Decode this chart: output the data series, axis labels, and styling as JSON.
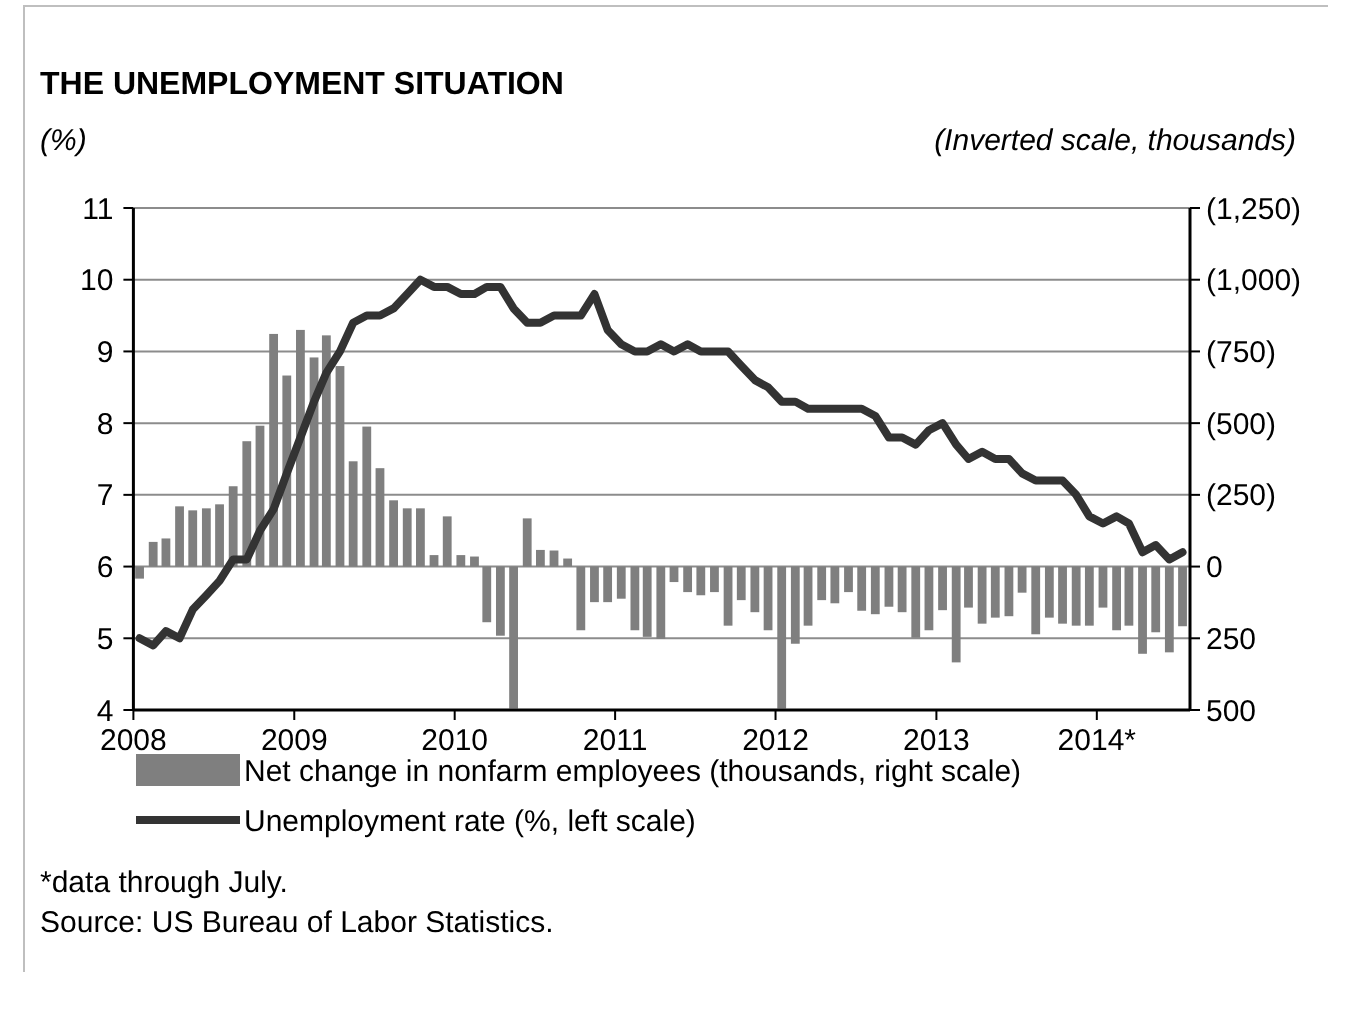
{
  "chart_data": {
    "type": "bar",
    "title": "THE UNEMPLOYMENT SITUATION",
    "ylabel": "(%)",
    "y2label": "(Inverted scale, thousands)",
    "x": [
      "2008-01-15",
      "2008-02-15",
      "2008-03-15",
      "2008-04-15",
      "2008-05-15",
      "2008-06-15",
      "2008-07-15",
      "2008-08-15",
      "2008-09-15",
      "2008-10-15",
      "2008-11-15",
      "2008-12-15",
      "2009-01-15",
      "2009-02-15",
      "2009-03-15",
      "2009-04-15",
      "2009-05-15",
      "2009-06-15",
      "2009-07-15",
      "2009-08-15",
      "2009-09-15",
      "2009-10-15",
      "2009-11-15",
      "2009-12-15",
      "2010-01-15",
      "2010-02-15",
      "2010-03-15",
      "2010-04-15",
      "2010-05-15",
      "2010-06-15",
      "2010-07-15",
      "2010-08-15",
      "2010-09-15",
      "2010-10-15",
      "2010-11-15",
      "2010-12-15",
      "2011-01-15",
      "2011-02-15",
      "2011-03-15",
      "2011-04-15",
      "2011-05-15",
      "2011-06-15",
      "2011-07-15",
      "2011-08-15",
      "2011-09-15",
      "2011-10-15",
      "2011-11-15",
      "2011-12-15",
      "2012-01-15",
      "2012-02-15",
      "2012-03-15",
      "2012-04-15",
      "2012-05-15",
      "2012-06-15",
      "2012-07-15",
      "2012-08-15",
      "2012-09-15",
      "2012-10-15",
      "2012-11-15",
      "2012-12-15",
      "2013-01-15",
      "2013-02-15",
      "2013-03-15",
      "2013-04-15",
      "2013-05-15",
      "2013-06-15",
      "2013-07-15",
      "2013-08-15",
      "2013-09-15",
      "2013-10-15",
      "2013-11-15",
      "2013-12-15",
      "2014-01-15",
      "2014-02-15",
      "2014-03-15",
      "2014-04-15",
      "2014-05-15",
      "2014-06-15",
      "2014-07-15"
    ],
    "series": [
      {
        "name": "Net change in nonfarm employees (thousands, right scale)",
        "axis": "y2",
        "color": "#7f7f7f",
        "values": [
          42,
          -86,
          -98,
          -210,
          -196,
          -203,
          -217,
          -280,
          -437,
          -491,
          -811,
          -666,
          -825,
          -729,
          -806,
          -699,
          -367,
          -488,
          -343,
          -231,
          -203,
          -203,
          -40,
          -175,
          -40,
          -35,
          194,
          241,
          495,
          -168,
          -58,
          -56,
          -28,
          222,
          124,
          124,
          112,
          222,
          245,
          252,
          54,
          89,
          100,
          89,
          206,
          117,
          159,
          222,
          495,
          269,
          206,
          117,
          128,
          89,
          154,
          166,
          140,
          159,
          248,
          222,
          152,
          334,
          143,
          199,
          178,
          173,
          91,
          236,
          178,
          199,
          206,
          206,
          143,
          222,
          206,
          304,
          229,
          299,
          208
        ]
      },
      {
        "name": "Unemployment rate (%, left scale)",
        "type": "line",
        "color": "#333333",
        "values": [
          5.0,
          4.9,
          5.1,
          5.0,
          5.4,
          5.6,
          5.8,
          6.1,
          6.1,
          6.5,
          6.8,
          7.3,
          7.8,
          8.3,
          8.7,
          9.0,
          9.4,
          9.5,
          9.5,
          9.6,
          9.8,
          10.0,
          9.9,
          9.9,
          9.8,
          9.8,
          9.9,
          9.9,
          9.6,
          9.4,
          9.4,
          9.5,
          9.5,
          9.5,
          9.8,
          9.3,
          9.1,
          9.0,
          9.0,
          9.1,
          9.0,
          9.1,
          9.0,
          9.0,
          9.0,
          8.8,
          8.6,
          8.5,
          8.3,
          8.3,
          8.2,
          8.2,
          8.2,
          8.2,
          8.2,
          8.1,
          7.8,
          7.8,
          7.7,
          7.9,
          8.0,
          7.7,
          7.5,
          7.6,
          7.5,
          7.5,
          7.3,
          7.2,
          7.2,
          7.2,
          7.0,
          6.7,
          6.6,
          6.7,
          6.6,
          6.2,
          6.3,
          6.1,
          6.2
        ]
      }
    ],
    "xlim": [
      "2008-01",
      "2014-08"
    ],
    "xticks": [
      {
        "value": "2008",
        "label": "2008"
      },
      {
        "value": "2009",
        "label": "2009"
      },
      {
        "value": "2010",
        "label": "2010"
      },
      {
        "value": "2011",
        "label": "2011"
      },
      {
        "value": "2012",
        "label": "2012"
      },
      {
        "value": "2013",
        "label": "2013"
      },
      {
        "value": "2014",
        "label": "2014*"
      }
    ],
    "ylim": [
      4,
      11
    ],
    "yticks": [
      4,
      5,
      6,
      7,
      8,
      9,
      10,
      11
    ],
    "y2lim": [
      500,
      -1250
    ],
    "y2ticks": [
      {
        "value": 500,
        "label": "500"
      },
      {
        "value": 250,
        "label": "250"
      },
      {
        "value": 0,
        "label": "0"
      },
      {
        "value": -250,
        "label": "(250)"
      },
      {
        "value": -500,
        "label": "(500)"
      },
      {
        "value": -750,
        "label": "(750)"
      },
      {
        "value": -1000,
        "label": "(1,000)"
      },
      {
        "value": -1250,
        "label": "(1,250)"
      }
    ],
    "grid": "y",
    "legend": "bottom",
    "annotations": [
      "*data through July.",
      "Source: US Bureau of Labor Statistics."
    ]
  }
}
